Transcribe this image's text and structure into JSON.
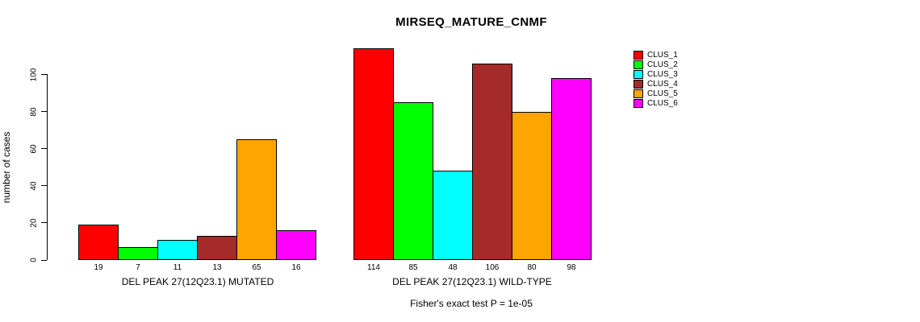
{
  "chart_data": {
    "type": "bar",
    "title": "MIRSEQ_MATURE_CNMF",
    "ylabel": "number of cases",
    "xlabel": "",
    "ylim": [
      0,
      115
    ],
    "yticks": [
      0,
      20,
      40,
      60,
      80,
      100
    ],
    "grid": false,
    "legend_position": "top-right",
    "categories": [
      "CLUS_1",
      "CLUS_2",
      "CLUS_3",
      "CLUS_4",
      "CLUS_5",
      "CLUS_6"
    ],
    "series_colors": [
      "#FF0000",
      "#00FF00",
      "#00FFFF",
      "#A52A2A",
      "#FFA500",
      "#FF00FF"
    ],
    "groups": [
      {
        "label": "DEL PEAK 27(12Q23.1) MUTATED",
        "values": [
          19,
          7,
          11,
          13,
          65,
          16
        ]
      },
      {
        "label": "DEL PEAK 27(12Q23.1) WILD-TYPE",
        "values": [
          114,
          85,
          48,
          106,
          80,
          98
        ]
      }
    ],
    "legend": [
      {
        "label": "CLUS_1",
        "color": "#FF0000"
      },
      {
        "label": "CLUS_2",
        "color": "#00FF00"
      },
      {
        "label": "CLUS_3",
        "color": "#00FFFF"
      },
      {
        "label": "CLUS_4",
        "color": "#A52A2A"
      },
      {
        "label": "CLUS_5",
        "color": "#FFA500"
      },
      {
        "label": "CLUS_6",
        "color": "#FF00FF"
      }
    ],
    "annotation": "Fisher's exact test P = 1e-05"
  }
}
